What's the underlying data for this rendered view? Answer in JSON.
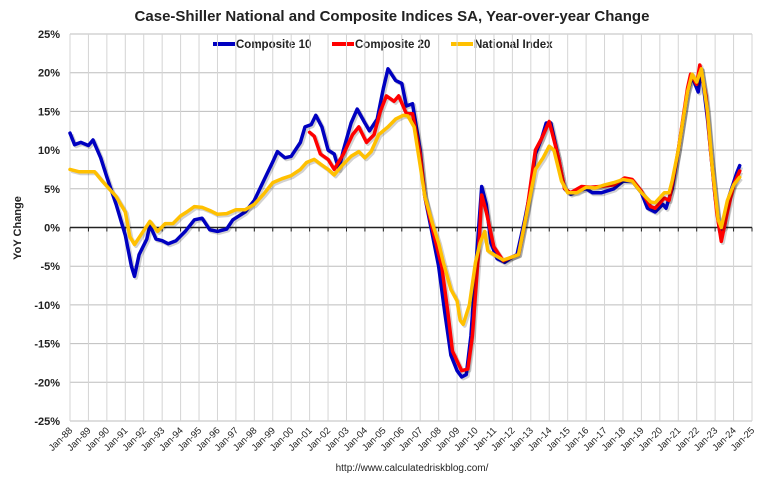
{
  "chart_data": {
    "type": "line",
    "title": "Case-Shiller National and Composite Indices SA, Year-over-year Change",
    "ylabel": "YoY Change",
    "xlabel": "",
    "source": "http://www.calculatedriskblog.com/",
    "ylim": [
      -25,
      25
    ],
    "yticks": [
      25,
      20,
      15,
      10,
      5,
      0,
      -5,
      -10,
      -15,
      -20,
      -25
    ],
    "ytick_labels": [
      "25%",
      "20%",
      "15%",
      "10%",
      "5%",
      "0%",
      "-5%",
      "-10%",
      "-15%",
      "-20%",
      "-25%"
    ],
    "xlim": [
      "1988-01",
      "2025-01"
    ],
    "xtick_labels": [
      "Jan-88",
      "Jan-89",
      "Jan-90",
      "Jan-91",
      "Jan-92",
      "Jan-93",
      "Jan-94",
      "Jan-95",
      "Jan-96",
      "Jan-97",
      "Jan-98",
      "Jan-99",
      "Jan-00",
      "Jan-01",
      "Jan-02",
      "Jan-03",
      "Jan-04",
      "Jan-05",
      "Jan-06",
      "Jan-07",
      "Jan-08",
      "Jan-09",
      "Jan-10",
      "Jan-11",
      "Jan-12",
      "Jan-13",
      "Jan-14",
      "Jan-15",
      "Jan-16",
      "Jan-17",
      "Jan-18",
      "Jan-19",
      "Jan-20",
      "Jan-21",
      "Jan-22",
      "Jan-23",
      "Jan-24",
      "Jan-25"
    ],
    "grid": true,
    "legend_placement": "top-center",
    "series": [
      {
        "name": "Composite 10",
        "color": "#0000C0",
        "points": [
          [
            "1988-01",
            12.2
          ],
          [
            "1988-04",
            10.7
          ],
          [
            "1988-08",
            11.0
          ],
          [
            "1989-01",
            10.6
          ],
          [
            "1989-04",
            11.3
          ],
          [
            "1989-09",
            9.0
          ],
          [
            "1990-01",
            6.5
          ],
          [
            "1990-07",
            3.0
          ],
          [
            "1991-01",
            -1.0
          ],
          [
            "1991-05",
            -5.0
          ],
          [
            "1991-07",
            -6.3
          ],
          [
            "1991-10",
            -3.5
          ],
          [
            "1992-03",
            -1.5
          ],
          [
            "1992-05",
            0.3
          ],
          [
            "1992-09",
            -1.5
          ],
          [
            "1993-01",
            -1.7
          ],
          [
            "1993-05",
            -2.1
          ],
          [
            "1993-10",
            -1.7
          ],
          [
            "1994-04",
            -0.5
          ],
          [
            "1994-10",
            1.0
          ],
          [
            "1995-03",
            1.2
          ],
          [
            "1995-08",
            -0.3
          ],
          [
            "1996-01",
            -0.5
          ],
          [
            "1996-07",
            -0.2
          ],
          [
            "1996-11",
            1.0
          ],
          [
            "1997-07",
            2.0
          ],
          [
            "1998-01",
            3.5
          ],
          [
            "1998-07",
            6.0
          ],
          [
            "1999-01",
            8.5
          ],
          [
            "1999-04",
            9.8
          ],
          [
            "1999-09",
            9.0
          ],
          [
            "2000-01",
            9.2
          ],
          [
            "2000-07",
            11.0
          ],
          [
            "2000-10",
            13.0
          ],
          [
            "2001-02",
            13.3
          ],
          [
            "2001-05",
            14.5
          ],
          [
            "2001-09",
            13.0
          ],
          [
            "2002-01",
            10.0
          ],
          [
            "2002-05",
            9.5
          ],
          [
            "2002-08",
            7.5
          ],
          [
            "2002-11",
            10.0
          ],
          [
            "2003-04",
            13.5
          ],
          [
            "2003-08",
            15.3
          ],
          [
            "2004-01",
            13.5
          ],
          [
            "2004-04",
            12.5
          ],
          [
            "2004-09",
            14.0
          ],
          [
            "2005-01",
            18.0
          ],
          [
            "2005-04",
            20.5
          ],
          [
            "2005-09",
            19.0
          ],
          [
            "2006-01",
            18.6
          ],
          [
            "2006-04",
            15.7
          ],
          [
            "2006-08",
            16.0
          ],
          [
            "2007-01",
            10.0
          ],
          [
            "2007-04",
            4.0
          ],
          [
            "2007-09",
            -1.0
          ],
          [
            "2008-01",
            -5.0
          ],
          [
            "2008-05",
            -11.0
          ],
          [
            "2008-09",
            -16.5
          ],
          [
            "2009-01",
            -18.5
          ],
          [
            "2009-04",
            -19.3
          ],
          [
            "2009-07",
            -19.0
          ],
          [
            "2009-10",
            -14.0
          ],
          [
            "2010-02",
            -3.0
          ],
          [
            "2010-05",
            5.3
          ],
          [
            "2010-08",
            3.0
          ],
          [
            "2010-11",
            -2.0
          ],
          [
            "2011-03",
            -4.0
          ],
          [
            "2011-08",
            -4.5
          ],
          [
            "2012-01",
            -3.8
          ],
          [
            "2012-04",
            -3.5
          ],
          [
            "2012-09",
            1.0
          ],
          [
            "2013-01",
            5.0
          ],
          [
            "2013-04",
            9.5
          ],
          [
            "2013-08",
            11.5
          ],
          [
            "2013-11",
            13.5
          ],
          [
            "2014-02",
            13.5
          ],
          [
            "2014-07",
            9.0
          ],
          [
            "2014-11",
            5.0
          ],
          [
            "2015-03",
            4.3
          ],
          [
            "2015-09",
            4.8
          ],
          [
            "2016-01",
            5.0
          ],
          [
            "2016-05",
            4.5
          ],
          [
            "2016-11",
            4.5
          ],
          [
            "2017-07",
            5.0
          ],
          [
            "2018-01",
            6.0
          ],
          [
            "2018-07",
            6.0
          ],
          [
            "2019-01",
            4.5
          ],
          [
            "2019-05",
            2.5
          ],
          [
            "2019-10",
            2.0
          ],
          [
            "2020-03",
            3.0
          ],
          [
            "2020-05",
            2.5
          ],
          [
            "2020-09",
            5.0
          ],
          [
            "2021-01",
            10.0
          ],
          [
            "2021-07",
            17.5
          ],
          [
            "2021-10",
            19.5
          ],
          [
            "2022-02",
            17.5
          ],
          [
            "2022-04",
            20.5
          ],
          [
            "2022-08",
            14.0
          ],
          [
            "2023-01",
            4.0
          ],
          [
            "2023-04",
            -0.5
          ],
          [
            "2023-07",
            0.0
          ],
          [
            "2023-10",
            4.0
          ],
          [
            "2024-03",
            7.0
          ],
          [
            "2024-05",
            8.0
          ]
        ]
      },
      {
        "name": "Composite 20",
        "color": "#FF0000",
        "points": [
          [
            "2001-01",
            12.3
          ],
          [
            "2001-04",
            11.8
          ],
          [
            "2001-08",
            9.5
          ],
          [
            "2002-01",
            8.8
          ],
          [
            "2002-05",
            7.5
          ],
          [
            "2002-11",
            9.5
          ],
          [
            "2003-05",
            12.0
          ],
          [
            "2003-09",
            13.0
          ],
          [
            "2004-02",
            11.0
          ],
          [
            "2004-07",
            12.0
          ],
          [
            "2004-11",
            15.0
          ],
          [
            "2005-03",
            17.0
          ],
          [
            "2005-08",
            16.3
          ],
          [
            "2005-11",
            17.0
          ],
          [
            "2006-04",
            14.7
          ],
          [
            "2006-08",
            14.7
          ],
          [
            "2007-01",
            9.5
          ],
          [
            "2007-04",
            4.0
          ],
          [
            "2007-10",
            -1.0
          ],
          [
            "2008-03",
            -5.0
          ],
          [
            "2008-07",
            -11.0
          ],
          [
            "2008-10",
            -16.0
          ],
          [
            "2009-04",
            -18.5
          ],
          [
            "2009-08",
            -18.3
          ],
          [
            "2009-11",
            -14.0
          ],
          [
            "2010-03",
            -3.0
          ],
          [
            "2010-05",
            4.2
          ],
          [
            "2010-08",
            2.0
          ],
          [
            "2011-01",
            -2.5
          ],
          [
            "2011-07",
            -4.3
          ],
          [
            "2012-01",
            -3.8
          ],
          [
            "2012-05",
            -3.5
          ],
          [
            "2012-10",
            1.5
          ],
          [
            "2013-04",
            10.0
          ],
          [
            "2013-08",
            11.5
          ],
          [
            "2014-01",
            13.7
          ],
          [
            "2014-07",
            9.0
          ],
          [
            "2014-11",
            5.0
          ],
          [
            "2015-03",
            4.5
          ],
          [
            "2015-10",
            5.3
          ],
          [
            "2016-04",
            5.2
          ],
          [
            "2016-10",
            5.3
          ],
          [
            "2017-07",
            5.5
          ],
          [
            "2018-02",
            6.4
          ],
          [
            "2018-07",
            6.2
          ],
          [
            "2019-01",
            4.7
          ],
          [
            "2019-07",
            2.7
          ],
          [
            "2019-10",
            2.5
          ],
          [
            "2020-04",
            3.8
          ],
          [
            "2020-07",
            3.5
          ],
          [
            "2020-09",
            5.5
          ],
          [
            "2021-01",
            10.0
          ],
          [
            "2021-07",
            18.0
          ],
          [
            "2021-09",
            19.8
          ],
          [
            "2022-01",
            18.5
          ],
          [
            "2022-03",
            21.0
          ],
          [
            "2022-07",
            17.0
          ],
          [
            "2022-10",
            10.0
          ],
          [
            "2023-02",
            2.0
          ],
          [
            "2023-05",
            -1.8
          ],
          [
            "2023-09",
            2.0
          ],
          [
            "2024-01",
            5.5
          ],
          [
            "2024-05",
            7.3
          ]
        ]
      },
      {
        "name": "National Index",
        "color": "#FFC000",
        "points": [
          [
            "1988-01",
            7.5
          ],
          [
            "1988-07",
            7.2
          ],
          [
            "1989-01",
            7.2
          ],
          [
            "1989-05",
            7.2
          ],
          [
            "1989-10",
            6.0
          ],
          [
            "1990-07",
            4.0
          ],
          [
            "1991-01",
            2.0
          ],
          [
            "1991-04",
            -1.2
          ],
          [
            "1991-07",
            -2.2
          ],
          [
            "1991-11",
            -1.0
          ],
          [
            "1992-05",
            0.8
          ],
          [
            "1992-10",
            -0.5
          ],
          [
            "1993-03",
            0.5
          ],
          [
            "1993-08",
            0.5
          ],
          [
            "1994-01",
            1.5
          ],
          [
            "1994-05",
            2.0
          ],
          [
            "1994-10",
            2.7
          ],
          [
            "1995-03",
            2.6
          ],
          [
            "1995-08",
            2.2
          ],
          [
            "1996-01",
            1.7
          ],
          [
            "1996-07",
            1.8
          ],
          [
            "1997-01",
            2.3
          ],
          [
            "1997-07",
            2.3
          ],
          [
            "1998-01",
            3.0
          ],
          [
            "1998-07",
            4.3
          ],
          [
            "1999-01",
            5.8
          ],
          [
            "1999-07",
            6.3
          ],
          [
            "2000-01",
            6.7
          ],
          [
            "2000-07",
            7.5
          ],
          [
            "2000-11",
            8.4
          ],
          [
            "2001-04",
            8.8
          ],
          [
            "2001-08",
            8.2
          ],
          [
            "2002-01",
            7.5
          ],
          [
            "2002-05",
            6.8
          ],
          [
            "2002-10",
            8.0
          ],
          [
            "2003-04",
            9.2
          ],
          [
            "2003-09",
            9.8
          ],
          [
            "2004-01",
            9.0
          ],
          [
            "2004-05",
            9.8
          ],
          [
            "2004-10",
            12.0
          ],
          [
            "2005-04",
            13.0
          ],
          [
            "2005-09",
            14.0
          ],
          [
            "2006-02",
            14.5
          ],
          [
            "2006-05",
            14.4
          ],
          [
            "2006-09",
            13.0
          ],
          [
            "2007-01",
            8.0
          ],
          [
            "2007-04",
            4.0
          ],
          [
            "2007-09",
            0.5
          ],
          [
            "2008-01",
            -2.0
          ],
          [
            "2008-04",
            -4.5
          ],
          [
            "2008-09",
            -8.0
          ],
          [
            "2009-01",
            -9.5
          ],
          [
            "2009-03",
            -12.0
          ],
          [
            "2009-05",
            -12.5
          ],
          [
            "2009-09",
            -10.0
          ],
          [
            "2010-01",
            -4.5
          ],
          [
            "2010-04",
            -2.0
          ],
          [
            "2010-07",
            -0.5
          ],
          [
            "2010-09",
            -3.0
          ],
          [
            "2011-01",
            -3.5
          ],
          [
            "2011-07",
            -4.2
          ],
          [
            "2012-01",
            -3.8
          ],
          [
            "2012-05",
            -3.5
          ],
          [
            "2012-10",
            1.5
          ],
          [
            "2013-04",
            7.5
          ],
          [
            "2013-09",
            9.0
          ],
          [
            "2014-01",
            10.5
          ],
          [
            "2014-04",
            10.0
          ],
          [
            "2014-09",
            6.0
          ],
          [
            "2015-01",
            4.5
          ],
          [
            "2015-07",
            4.5
          ],
          [
            "2016-01",
            5.2
          ],
          [
            "2016-07",
            5.1
          ],
          [
            "2017-01",
            5.5
          ],
          [
            "2017-07",
            5.8
          ],
          [
            "2018-01",
            6.2
          ],
          [
            "2018-07",
            6.0
          ],
          [
            "2019-01",
            4.5
          ],
          [
            "2019-07",
            3.3
          ],
          [
            "2019-10",
            3.2
          ],
          [
            "2020-04",
            4.5
          ],
          [
            "2020-07",
            4.5
          ],
          [
            "2020-09",
            6.0
          ],
          [
            "2021-01",
            10.0
          ],
          [
            "2021-07",
            17.5
          ],
          [
            "2021-10",
            19.8
          ],
          [
            "2022-01",
            18.8
          ],
          [
            "2022-04",
            20.5
          ],
          [
            "2022-08",
            15.0
          ],
          [
            "2022-11",
            8.0
          ],
          [
            "2023-03",
            1.0
          ],
          [
            "2023-05",
            0.0
          ],
          [
            "2023-09",
            3.5
          ],
          [
            "2024-01",
            5.5
          ],
          [
            "2024-05",
            6.5
          ]
        ]
      }
    ]
  }
}
